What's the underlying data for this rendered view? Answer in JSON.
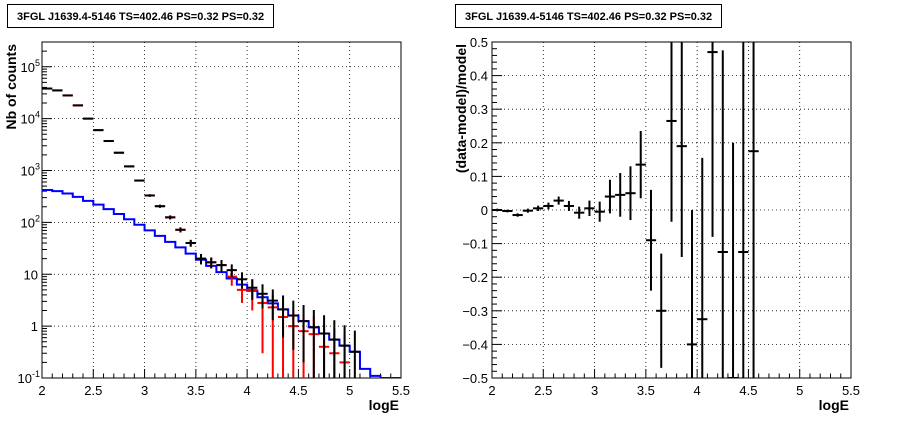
{
  "chart_data": [
    {
      "type": "line",
      "title": "3FGL J1639.4-5146 TS=402.46 PS=0.32 PS=0.32",
      "xlabel": "logE",
      "ylabel": "Nb of counts",
      "xlim": [
        2,
        5.5
      ],
      "ylim": [
        0.1,
        300000
      ],
      "yscale": "log",
      "grid": true,
      "xticks": [
        "2",
        "2.5",
        "3",
        "3.5",
        "4",
        "4.5",
        "5",
        "5.5"
      ],
      "yticks": [
        {
          "value": 0.1,
          "label": "10",
          "exp": "-1"
        },
        {
          "value": 1,
          "label": "1",
          "exp": ""
        },
        {
          "value": 10,
          "label": "10",
          "exp": ""
        },
        {
          "value": 100,
          "label": "10",
          "exp": "2"
        },
        {
          "value": 1000,
          "label": "10",
          "exp": "3"
        },
        {
          "value": 10000,
          "label": "10",
          "exp": "4"
        },
        {
          "value": 100000,
          "label": "10",
          "exp": "5"
        }
      ],
      "colors": {
        "model": "#0000ff",
        "data": "#000000",
        "total": "#ff0000"
      },
      "series": [
        {
          "kind": "step",
          "bin_width": 0.1,
          "x": [
            2.0,
            2.1,
            2.2,
            2.3,
            2.4,
            2.5,
            2.6,
            2.7,
            2.8,
            2.9,
            3.0,
            3.1,
            3.2,
            3.3,
            3.4,
            3.5,
            3.6,
            3.7,
            3.8,
            3.9,
            4.0,
            4.1,
            4.2,
            4.3,
            4.4,
            4.5,
            4.6,
            4.7,
            4.8,
            4.9,
            5.0,
            5.1,
            5.2,
            5.3,
            5.4
          ],
          "values": [
            420,
            400,
            360,
            310,
            260,
            220,
            180,
            145,
            115,
            90,
            70,
            55,
            42,
            33,
            25,
            19,
            14.5,
            11,
            8.3,
            6.3,
            4.8,
            3.6,
            2.75,
            2.1,
            1.6,
            1.25,
            0.95,
            0.72,
            0.55,
            0.42,
            0.32,
            0.15,
            0.11,
            0.1,
            0.1
          ]
        },
        {
          "kind": "errorbar",
          "bin_width": 0.1,
          "x": [
            2.05,
            2.15,
            2.25,
            2.35,
            2.45,
            2.55,
            2.65,
            2.75,
            2.85,
            2.95,
            3.05,
            3.15,
            3.25,
            3.35,
            3.45,
            3.55,
            3.65,
            3.75,
            3.85,
            3.95,
            4.05,
            4.15,
            4.25,
            4.35,
            4.45,
            4.55,
            4.65,
            4.75,
            4.85,
            4.95
          ],
          "values": [
            38000,
            35000,
            28000,
            18000,
            10000,
            6000,
            3700,
            2200,
            1200,
            640,
            330,
            205,
            125,
            72,
            40,
            20,
            17,
            15,
            9,
            5,
            5,
            2.8,
            2.3,
            1.5,
            1.0,
            0.8,
            0.7,
            0.4,
            0.3,
            0.2
          ],
          "err_low": [
            200,
            180,
            160,
            130,
            100,
            80,
            60,
            45,
            35,
            25,
            18,
            14,
            11,
            8,
            6,
            4.5,
            4,
            3.8,
            3,
            2.2,
            3,
            2.5,
            2.2,
            1.4,
            0.95,
            0.78,
            0.68,
            0.38,
            0.28,
            0.19
          ],
          "err_high": [
            200,
            180,
            160,
            130,
            100,
            80,
            60,
            45,
            35,
            25,
            18,
            14,
            11,
            8,
            6,
            4.5,
            4,
            3.8,
            3,
            2.2,
            3,
            1.5,
            1.6,
            1.3,
            1.0,
            0.9,
            0.9,
            0.7,
            0.6,
            0.5
          ]
        },
        {
          "kind": "errorbar",
          "bin_width": 0.1,
          "x": [
            2.05,
            2.15,
            2.25,
            2.35,
            2.45,
            2.55,
            2.65,
            2.75,
            2.85,
            2.95,
            3.05,
            3.15,
            3.25,
            3.35,
            3.45,
            3.55,
            3.65,
            3.75,
            3.85,
            3.95,
            4.05,
            4.15,
            4.25,
            4.35,
            4.45,
            4.55,
            4.65,
            4.75,
            4.85,
            4.95,
            5.05
          ],
          "values": [
            38000,
            35000,
            28000,
            18000,
            10000,
            6000,
            3700,
            2200,
            1200,
            640,
            330,
            205,
            125,
            72,
            40,
            20,
            17,
            15,
            12,
            8,
            5.5,
            4.2,
            3.1,
            2.1,
            1.6,
            1.25,
            0.95,
            0.72,
            0.55,
            0.42,
            0.32
          ],
          "err_low": [
            200,
            180,
            160,
            130,
            100,
            80,
            60,
            45,
            35,
            25,
            18,
            14,
            11,
            8,
            6,
            4.5,
            4,
            3.8,
            3.3,
            2.7,
            2.3,
            2.0,
            1.8,
            1.5,
            1.25,
            1.05,
            0.85,
            0.62,
            0.45,
            0.32,
            0.22
          ],
          "err_high": [
            200,
            180,
            160,
            130,
            100,
            80,
            60,
            45,
            35,
            25,
            18,
            14,
            11,
            8,
            6,
            4.5,
            4,
            3.8,
            3.5,
            2.9,
            2.5,
            2.2,
            2.0,
            1.8,
            1.5,
            1.3,
            1.1,
            0.9,
            0.75,
            0.62,
            0.5
          ]
        }
      ]
    },
    {
      "type": "scatter",
      "title": "3FGL J1639.4-5146 TS=402.46 PS=0.32 PS=0.32",
      "xlabel": "logE",
      "ylabel": "(data-model)/model",
      "xlim": [
        2,
        5.5
      ],
      "ylim": [
        -0.5,
        0.5
      ],
      "grid": true,
      "xticks": [
        "2",
        "2.5",
        "3",
        "3.5",
        "4",
        "4.5",
        "5",
        "5.5"
      ],
      "yticks": [
        {
          "value": -0.5,
          "label": "−0.5"
        },
        {
          "value": -0.4,
          "label": "−0.4"
        },
        {
          "value": -0.3,
          "label": "−0.3"
        },
        {
          "value": -0.2,
          "label": "−0.2"
        },
        {
          "value": -0.1,
          "label": "−0.1"
        },
        {
          "value": 0,
          "label": "0"
        },
        {
          "value": 0.1,
          "label": "0.1"
        },
        {
          "value": 0.2,
          "label": "0.2"
        },
        {
          "value": 0.3,
          "label": "0.3"
        },
        {
          "value": 0.4,
          "label": "0.4"
        },
        {
          "value": 0.5,
          "label": "0.5"
        }
      ],
      "colors": {
        "data": "#000000"
      },
      "series": [
        {
          "kind": "errorbar",
          "bin_width": 0.1,
          "x": [
            2.05,
            2.15,
            2.25,
            2.35,
            2.45,
            2.55,
            2.65,
            2.75,
            2.85,
            2.95,
            3.05,
            3.15,
            3.25,
            3.35,
            3.45,
            3.55,
            3.65,
            3.75,
            3.85,
            3.95,
            4.05,
            4.15,
            4.25,
            4.35,
            4.45,
            4.55
          ],
          "values": [
            0.0,
            -0.003,
            -0.015,
            -0.002,
            0.005,
            0.012,
            0.028,
            0.012,
            -0.008,
            0.005,
            -0.005,
            0.04,
            0.045,
            0.05,
            0.135,
            -0.09,
            -0.3,
            0.265,
            0.19,
            -0.4,
            -0.325,
            0.47,
            -0.125,
            -0.5,
            -0.125,
            0.175
          ],
          "err": [
            0.004,
            0.004,
            0.005,
            0.006,
            0.008,
            0.01,
            0.012,
            0.015,
            0.018,
            0.023,
            0.03,
            0.05,
            0.065,
            0.08,
            0.1,
            0.15,
            0.17,
            0.3,
            0.33,
            0.4,
            0.48,
            0.55,
            0.6,
            0.7,
            0.75,
            0.8
          ]
        }
      ]
    }
  ]
}
